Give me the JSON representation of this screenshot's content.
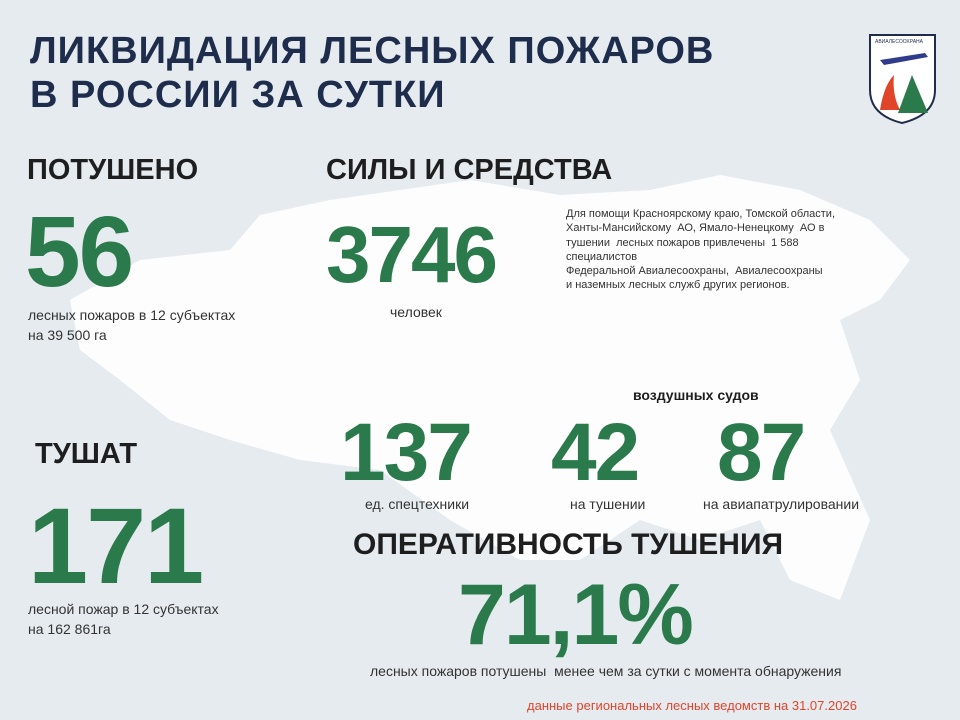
{
  "header": {
    "title_lines": [
      "ЛИКВИДАЦИЯ ЛЕСНЫХ ПОЖАРОВ",
      "В РОССИИ ЗА СУТКИ"
    ],
    "logo_text": "АВИАЛЕСООХРАНА"
  },
  "extinguished": {
    "heading": "ПОТУШЕНО",
    "value": "56",
    "caption_lines": [
      "лесных пожаров в 12 субъектах",
      "на 39 500 га"
    ]
  },
  "forces": {
    "heading": "СИЛЫ И СРЕДСТВА",
    "value": "3746",
    "caption": "человек",
    "note_lines": [
      "Для помощи Красноярскому краю, Томской области,",
      "Ханты-Мансийскому  АО, Ямало-Ненецкому  АО в",
      "тушении  лесных пожаров привлечены  1 588",
      "специалистов",
      "Федеральной Авиалесоохраны,  Авиалесоохраны",
      "и наземных лесных служб других регионов."
    ]
  },
  "equipment": {
    "aircraft_label": "воздушных судов",
    "items": [
      {
        "value": "137",
        "caption": "ед. спецтехники"
      },
      {
        "value": "42",
        "caption": "на тушении"
      },
      {
        "value": "87",
        "caption": "на авиапатрулировании"
      }
    ]
  },
  "fighting": {
    "heading": "ТУШАТ",
    "value": "171",
    "caption_lines": [
      "лесной пожар в 12 субъектах",
      "на 162 861га"
    ]
  },
  "efficiency": {
    "heading": "ОПЕРАТИВНОСТЬ ТУШЕНИЯ",
    "value": "71,1%",
    "caption": "лесных пожаров потушены  менее чем за сутки с момента обнаружения"
  },
  "footer": "данные региональных лесных ведомств на 31.07.2026"
}
